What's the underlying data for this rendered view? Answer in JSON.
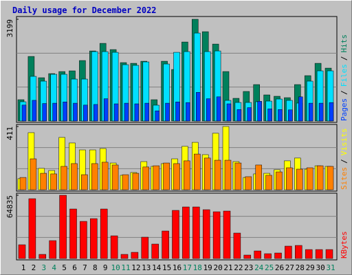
{
  "title": "Daily usage for December 2022",
  "legend_separator": "/",
  "chart_data": [
    {
      "type": "bar",
      "ylim": [
        0,
        3199
      ],
      "yticks": [
        3199
      ],
      "series": [
        {
          "name": "Pages",
          "color": "#0040ff",
          "values": [
            500,
            650,
            550,
            560,
            600,
            560,
            500,
            520,
            700,
            540,
            560,
            540,
            560,
            320,
            560,
            600,
            580,
            900,
            700,
            760,
            540,
            360,
            420,
            620,
            380,
            360,
            350,
            760,
            560,
            560,
            580
          ]
        },
        {
          "name": "Files",
          "color": "#00e0ff",
          "values": [
            605,
            1404,
            1253,
            1469,
            1469,
            1318,
            1318,
            2182,
            2182,
            2160,
            1771,
            1750,
            1858,
            497,
            1793,
            2160,
            2182,
            2765,
            2182,
            2203,
            648,
            583,
            583,
            605,
            626,
            691,
            648,
            562,
            1253,
            1577,
            1577
          ]
        },
        {
          "name": "Hits",
          "color": "#00805c",
          "values": [
            670,
            2030,
            1361,
            1490,
            1555,
            1577,
            1901,
            2203,
            2441,
            2246,
            1836,
            1814,
            1879,
            670,
            1879,
            1620,
            2484,
            3199,
            2808,
            2419,
            1555,
            713,
            929,
            1145,
            821,
            778,
            734,
            1145,
            1426,
            1814,
            1663
          ]
        }
      ]
    },
    {
      "type": "bar",
      "ylim": [
        0,
        411
      ],
      "yticks": [
        411
      ],
      "series": [
        {
          "name": "Sites",
          "color": "#ff8000",
          "values": [
            80,
            201,
            107,
            103,
            152,
            170,
            98,
            170,
            179,
            161,
            98,
            107,
            148,
            156,
            174,
            170,
            188,
            232,
            206,
            192,
            192,
            174,
            85,
            161,
            94,
            116,
            143,
            134,
            143,
            156,
            152
          ]
        },
        {
          "name": "Visits",
          "color": "#ffff00",
          "values": [
            72,
            371,
            139,
            125,
            340,
            304,
            259,
            259,
            268,
            174,
            94,
            112,
            183,
            152,
            170,
            201,
            282,
            308,
            228,
            367,
            411,
            183,
            80,
            103,
            107,
            130,
            188,
            206,
            134,
            156,
            152
          ]
        }
      ]
    },
    {
      "type": "bar",
      "ylim": [
        0,
        64835
      ],
      "yticks": [
        64835
      ],
      "categories": [
        "1",
        "2",
        "3",
        "4",
        "5",
        "6",
        "7",
        "8",
        "9",
        "10",
        "11",
        "12",
        "13",
        "14",
        "15",
        "16",
        "17",
        "18",
        "19",
        "20",
        "21",
        "22",
        "23",
        "24",
        "25",
        "26",
        "27",
        "28",
        "29",
        "30",
        "31"
      ],
      "label_colors": [
        "#000000",
        "#000000",
        "#00805c",
        "#00805c",
        "#000000",
        "#000000",
        "#000000",
        "#000000",
        "#000000",
        "#00805c",
        "#00805c",
        "#000000",
        "#000000",
        "#000000",
        "#000000",
        "#000000",
        "#00805c",
        "#00805c",
        "#000000",
        "#000000",
        "#000000",
        "#000000",
        "#000000",
        "#00805c",
        "#00805c",
        "#000000",
        "#000000",
        "#000000",
        "#000000",
        "#000000",
        "#00805c"
      ],
      "series": [
        {
          "name": "KBytes",
          "color": "#ff0000",
          "values": [
            14094,
            61309,
            4228,
            18322,
            64835,
            50738,
            38054,
            40873,
            50738,
            23255,
            4228,
            6342,
            21846,
            14799,
            28188,
            49329,
            52853,
            52853,
            50034,
            47920,
            48624,
            26074,
            3524,
            7752,
            4933,
            5638,
            12685,
            13389,
            9161,
            9161,
            9161
          ]
        }
      ]
    }
  ]
}
